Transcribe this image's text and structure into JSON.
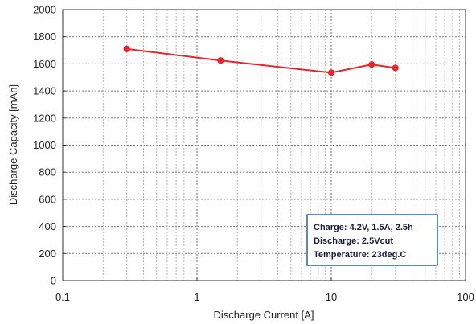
{
  "chart_data": {
    "type": "line",
    "x_scale": "log",
    "xlabel": "Discharge Current [A]",
    "ylabel": "Discharge Capacity [mAh]",
    "xlim": [
      0.1,
      100
    ],
    "ylim": [
      0,
      2000
    ],
    "x_ticks": [
      0.1,
      1,
      10,
      100
    ],
    "x_tick_labels": [
      "0.1",
      "1",
      "10",
      "100"
    ],
    "y_ticks": [
      0,
      200,
      400,
      600,
      800,
      1000,
      1200,
      1400,
      1600,
      1800,
      2000
    ],
    "y_tick_labels": [
      "0",
      "200",
      "400",
      "600",
      "800",
      "1000",
      "1200",
      "1400",
      "1600",
      "1800",
      "2000"
    ],
    "grid": true,
    "series": [
      {
        "x": [
          0.3,
          1.5,
          10,
          20,
          30
        ],
        "y": [
          1710,
          1625,
          1535,
          1595,
          1570
        ],
        "color": "#e8262d"
      }
    ],
    "annotation": {
      "position": "bottom-right",
      "lines": [
        "Charge: 4.2V, 1.5A, 2.5h",
        "Discharge: 2.5Vcut",
        "Temperature: 23deg.C"
      ],
      "border_color": "#2b5fa8"
    }
  }
}
